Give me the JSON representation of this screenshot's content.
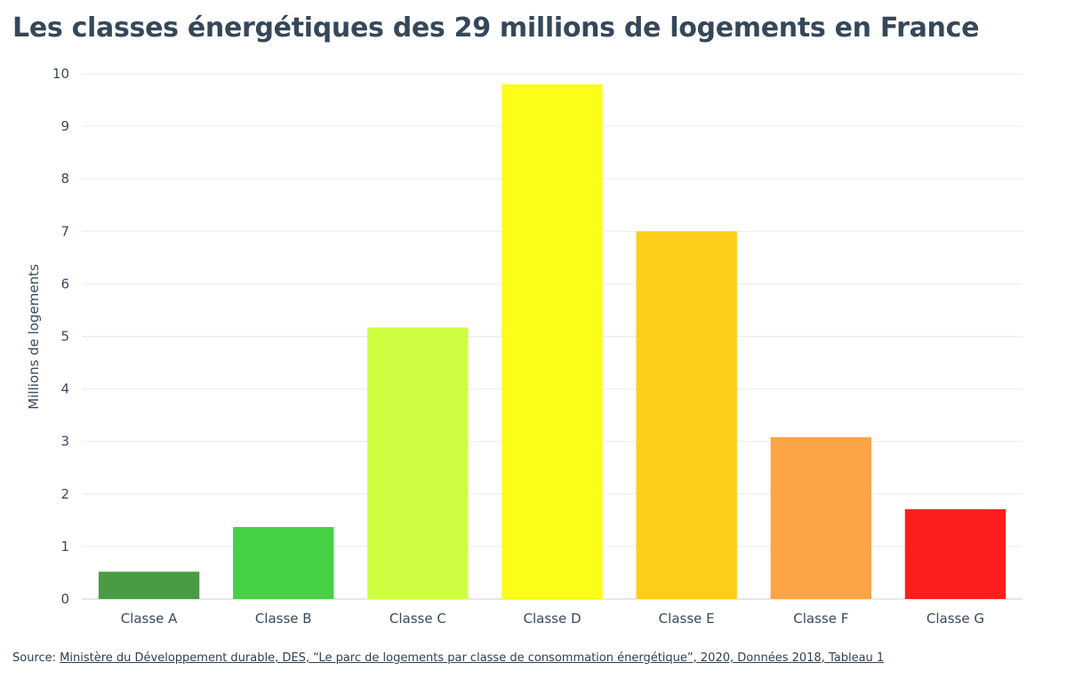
{
  "chart_data": {
    "type": "bar",
    "title": "Les classes énergétiques des 29 millions de logements en France",
    "xlabel": "",
    "ylabel": "Millions de logements",
    "categories": [
      "Classe A",
      "Classe B",
      "Classe C",
      "Classe D",
      "Classe E",
      "Classe F",
      "Classe G"
    ],
    "values": [
      0.52,
      1.37,
      5.17,
      9.8,
      7.0,
      3.08,
      1.71
    ],
    "colors": [
      "#4a9c44",
      "#45d145",
      "#cefd42",
      "#fdfd1a",
      "#fccd1b",
      "#fca446",
      "#fc1f1e"
    ],
    "ylim": [
      0,
      10
    ],
    "yticks": [
      "0",
      "1",
      "2",
      "3",
      "4",
      "5",
      "6",
      "7",
      "8",
      "9",
      "10"
    ],
    "grid": true,
    "legend": "none"
  },
  "source": {
    "prefix": "Source: ",
    "link_text": "Ministère du Développement durable, DES, “Le parc de logements par classe de consommation énergétique”, 2020, Données 2018, Tableau 1"
  }
}
